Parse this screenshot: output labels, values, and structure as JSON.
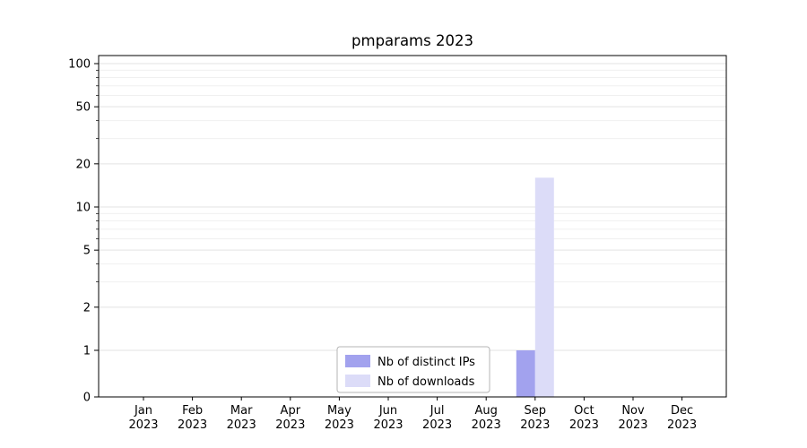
{
  "chart_data": {
    "type": "bar",
    "title": "pmparams 2023",
    "categories": [
      "Jan",
      "Feb",
      "Mar",
      "Apr",
      "May",
      "Jun",
      "Jul",
      "Aug",
      "Sep",
      "Oct",
      "Nov",
      "Dec"
    ],
    "year_labels": [
      "2023",
      "2023",
      "2023",
      "2023",
      "2023",
      "2023",
      "2023",
      "2023",
      "2023",
      "2023",
      "2023",
      "2023"
    ],
    "series": [
      {
        "name": "Nb of distinct IPs",
        "color": "#a2a2ee",
        "values": [
          0,
          0,
          0,
          0,
          0,
          0,
          0,
          0,
          1,
          0,
          0,
          0
        ]
      },
      {
        "name": "Nb of downloads",
        "color": "#dcdcf8",
        "values": [
          0,
          0,
          0,
          0,
          0,
          0,
          0,
          0,
          16,
          0,
          0,
          0
        ]
      }
    ],
    "yscale": "symlog",
    "yticks": [
      0,
      1,
      2,
      5,
      10,
      20,
      50,
      100
    ],
    "grid_values_minor": [
      3,
      4,
      6,
      7,
      8,
      9,
      30,
      40,
      60,
      70,
      80,
      90
    ],
    "grid_values_major": [
      1,
      2,
      5,
      10,
      20,
      50,
      100
    ],
    "ylim": [
      0,
      113
    ],
    "grid": true,
    "legend_position": "lower center",
    "colors": {
      "axis": "#000000",
      "grid_minor": "#f0f0f0",
      "grid_major": "#e3e3e3",
      "legend_border": "#b5b5b5",
      "background": "#ffffff",
      "text": "#000000"
    }
  }
}
